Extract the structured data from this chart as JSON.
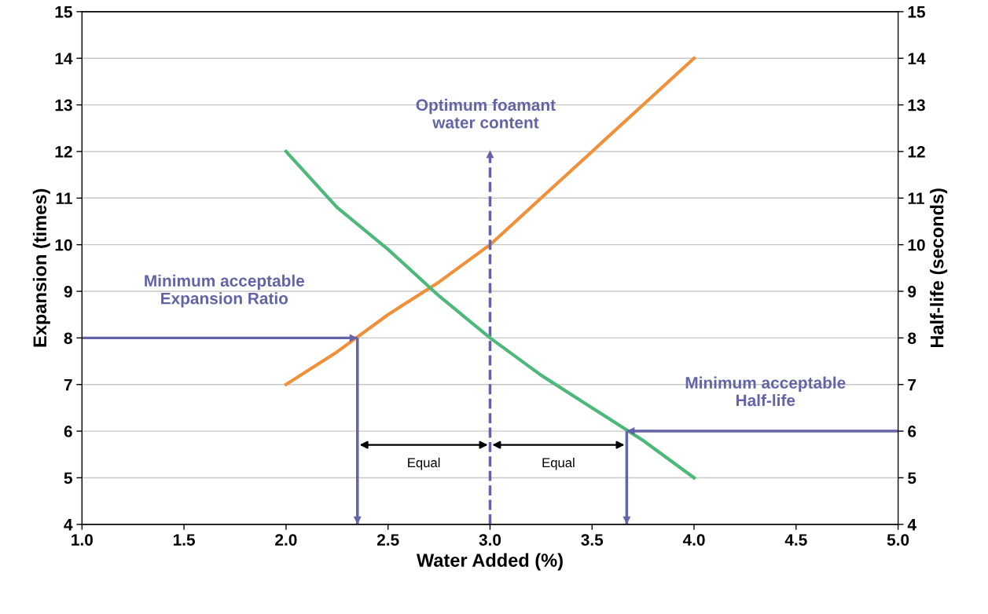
{
  "chart_data": {
    "type": "line",
    "xlabel": "Water Added (%)",
    "ylabel": "Expansion (times)",
    "y2label": "Half-life (seconds)",
    "xlim": [
      1.0,
      5.0
    ],
    "xticks": [
      {
        "value": 1.0,
        "label": "1.0"
      },
      {
        "value": 1.5,
        "label": "1.5"
      },
      {
        "value": 2.0,
        "label": "2.0"
      },
      {
        "value": 2.5,
        "label": "2.5"
      },
      {
        "value": 3.0,
        "label": "3.0"
      },
      {
        "value": 3.5,
        "label": "3.5"
      },
      {
        "value": 4.0,
        "label": "4.0"
      },
      {
        "value": 4.5,
        "label": "4.5"
      },
      {
        "value": 5.0,
        "label": "5.0"
      }
    ],
    "ylim": [
      4,
      15
    ],
    "yticks": [
      4,
      5,
      6,
      7,
      8,
      9,
      10,
      11,
      12,
      13,
      14,
      15
    ],
    "y2lim": [
      4,
      15
    ],
    "y2ticks": [
      4,
      5,
      6,
      7,
      8,
      9,
      10,
      11,
      12,
      13,
      14,
      15
    ],
    "x": [
      2.0,
      2.25,
      2.5,
      2.75,
      3.0,
      3.25,
      3.5,
      3.75,
      4.0
    ],
    "series": [
      {
        "color": "#f0913a",
        "values": [
          7.0,
          7.7,
          8.5,
          9.2,
          10.0,
          11.0,
          12.0,
          13.0,
          14.0
        ]
      },
      {
        "color": "#4cb87a",
        "axis": "y2",
        "values": [
          12.0,
          10.8,
          9.9,
          8.9,
          8.0,
          7.2,
          6.5,
          5.8,
          5.0
        ]
      }
    ],
    "grid": "y",
    "marker": "none",
    "line_style": "solid",
    "ref_lines": [
      {
        "axis": "y",
        "value": 8,
        "label": "Minimum acceptable\nExpansion Ratio",
        "color": "#6264a7"
      },
      {
        "axis": "x",
        "value": 2.35,
        "color": "#6264a7"
      },
      {
        "axis": "x",
        "value": 3.0,
        "label": "Optimum foamant\nwater content",
        "color": "#6264a7",
        "line_style": "dashed"
      },
      {
        "axis": "x",
        "value": 3.67,
        "color": "#6264a7"
      },
      {
        "axis": "y2",
        "value": 6,
        "label": "Minimum acceptable\nHalf-life",
        "color": "#6264a7"
      }
    ],
    "annotations": [
      "Equal",
      "Equal"
    ]
  }
}
